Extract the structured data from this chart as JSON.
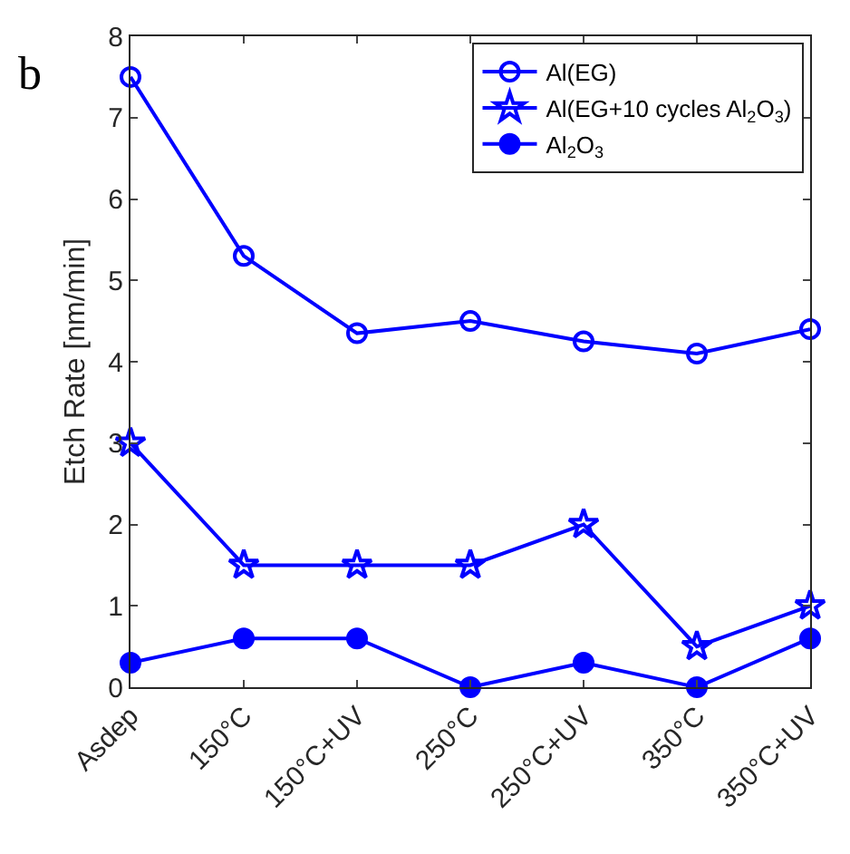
{
  "chart_data": {
    "type": "line",
    "categories": [
      "Asdep",
      "150°C",
      "150°C+UV",
      "250°C",
      "250°C+UV",
      "350°C",
      "350°C+UV"
    ],
    "ylabel": "Etch Rate [nm/min]",
    "annotations": [
      "b"
    ],
    "ylim": [
      0,
      8
    ],
    "yticks": [
      0,
      1,
      2,
      3,
      4,
      5,
      6,
      7,
      8
    ],
    "legend": "top right",
    "line_style": "solid",
    "series": [
      {
        "name": "Al(EG)",
        "color": "#0000ff",
        "marker": "circle-open",
        "values": [
          7.5,
          5.3,
          4.35,
          4.5,
          4.25,
          4.1,
          4.4
        ]
      },
      {
        "name": "Al(EG+10 cycles Al$_{2}$O$_{3}$)",
        "color": "#0000ff",
        "marker": "star-open",
        "values": [
          3.0,
          1.5,
          1.5,
          1.5,
          2.0,
          0.5,
          1.0
        ]
      },
      {
        "name": "Al$_{2}$O$_{3}$",
        "color": "#0000ff",
        "marker": "circle",
        "values": [
          0.3,
          0.6,
          0.6,
          0.0,
          0.3,
          0.0,
          0.6
        ]
      }
    ]
  }
}
